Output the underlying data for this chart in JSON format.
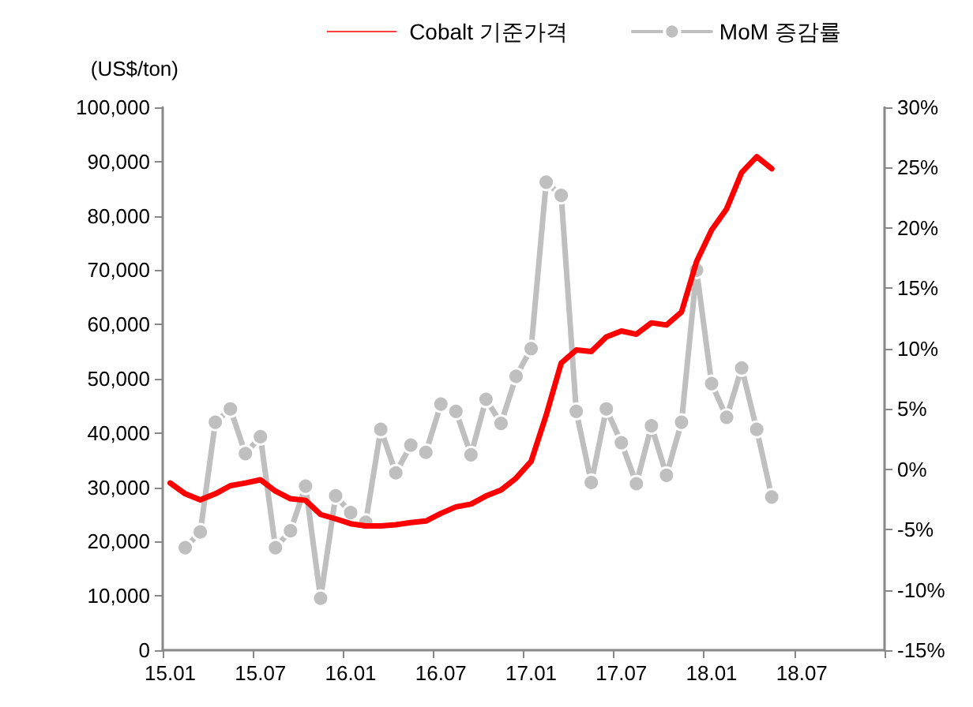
{
  "chart_data": {
    "type": "line",
    "categories": [
      "15.01",
      null,
      null,
      null,
      null,
      null,
      "15.07",
      null,
      null,
      null,
      null,
      null,
      "16.01",
      null,
      null,
      null,
      null,
      null,
      "16.07",
      null,
      null,
      null,
      null,
      null,
      "17.01",
      null,
      null,
      null,
      null,
      null,
      "17.07",
      null,
      null,
      null,
      null,
      null,
      "18.01",
      null,
      null,
      null,
      null,
      null,
      "18.07",
      null,
      null,
      null,
      null,
      null
    ],
    "series": [
      {
        "name": "Cobalt 기준가격",
        "color": "#ff0000",
        "marker": "none",
        "values": [
          30800,
          28800,
          27700,
          28800,
          30300,
          30800,
          31400,
          29300,
          27900,
          27600,
          25000,
          24200,
          23300,
          22900,
          22900,
          23100,
          23500,
          23800,
          25200,
          26400,
          26900,
          28400,
          29500,
          31700,
          34800,
          43300,
          52900,
          55300,
          55000,
          57700,
          58800,
          58200,
          60300,
          59900,
          62300,
          71600,
          77400,
          81300,
          88000,
          90900,
          88700,
          null,
          null,
          null,
          null,
          null,
          null,
          null
        ]
      },
      {
        "name": "MoM 증감률",
        "color": "#bfbfbf",
        "marker": "circle",
        "axis": "y2",
        "values": [
          null,
          -6.5,
          -5.2,
          3.9,
          5.0,
          1.3,
          2.7,
          -6.5,
          -5.1,
          -1.4,
          -10.7,
          -2.2,
          -3.6,
          -4.4,
          3.3,
          -0.3,
          2.0,
          1.4,
          5.4,
          4.8,
          1.2,
          5.8,
          3.8,
          7.7,
          10.0,
          23.8,
          22.7,
          4.8,
          -1.1,
          5.0,
          2.2,
          -1.2,
          3.6,
          -0.5,
          3.9,
          16.5,
          7.1,
          4.3,
          8.4,
          3.3,
          -2.3,
          null,
          null,
          null,
          null,
          null,
          null,
          null
        ]
      }
    ],
    "ylabel": "(US$/ton)",
    "ylim": [
      0,
      100000
    ],
    "yticks": [
      0,
      {
        "value": 10000,
        "label": "10,000"
      },
      {
        "value": 20000,
        "label": "20,000"
      },
      {
        "value": 30000,
        "label": "30,000"
      },
      {
        "value": 40000,
        "label": "40,000"
      },
      {
        "value": 50000,
        "label": "50,000"
      },
      {
        "value": 60000,
        "label": "60,000"
      },
      {
        "value": 70000,
        "label": "70,000"
      },
      {
        "value": 80000,
        "label": "80,000"
      },
      {
        "value": 90000,
        "label": "90,000"
      },
      {
        "value": 100000,
        "label": "100,000"
      }
    ],
    "y2lim": [
      -15,
      30
    ],
    "y2ticks": [
      {
        "value": -15,
        "label": "-15%"
      },
      {
        "value": -10,
        "label": "-10%"
      },
      {
        "value": -5,
        "label": "-5%"
      },
      {
        "value": 0,
        "label": "0%"
      },
      {
        "value": 5,
        "label": "5%"
      },
      {
        "value": 10,
        "label": "10%"
      },
      {
        "value": 15,
        "label": "15%"
      },
      {
        "value": 20,
        "label": "20%"
      },
      {
        "value": 25,
        "label": "25%"
      },
      {
        "value": 30,
        "label": "30%"
      }
    ],
    "grid": false,
    "legend": "top",
    "line_style": "solid"
  }
}
